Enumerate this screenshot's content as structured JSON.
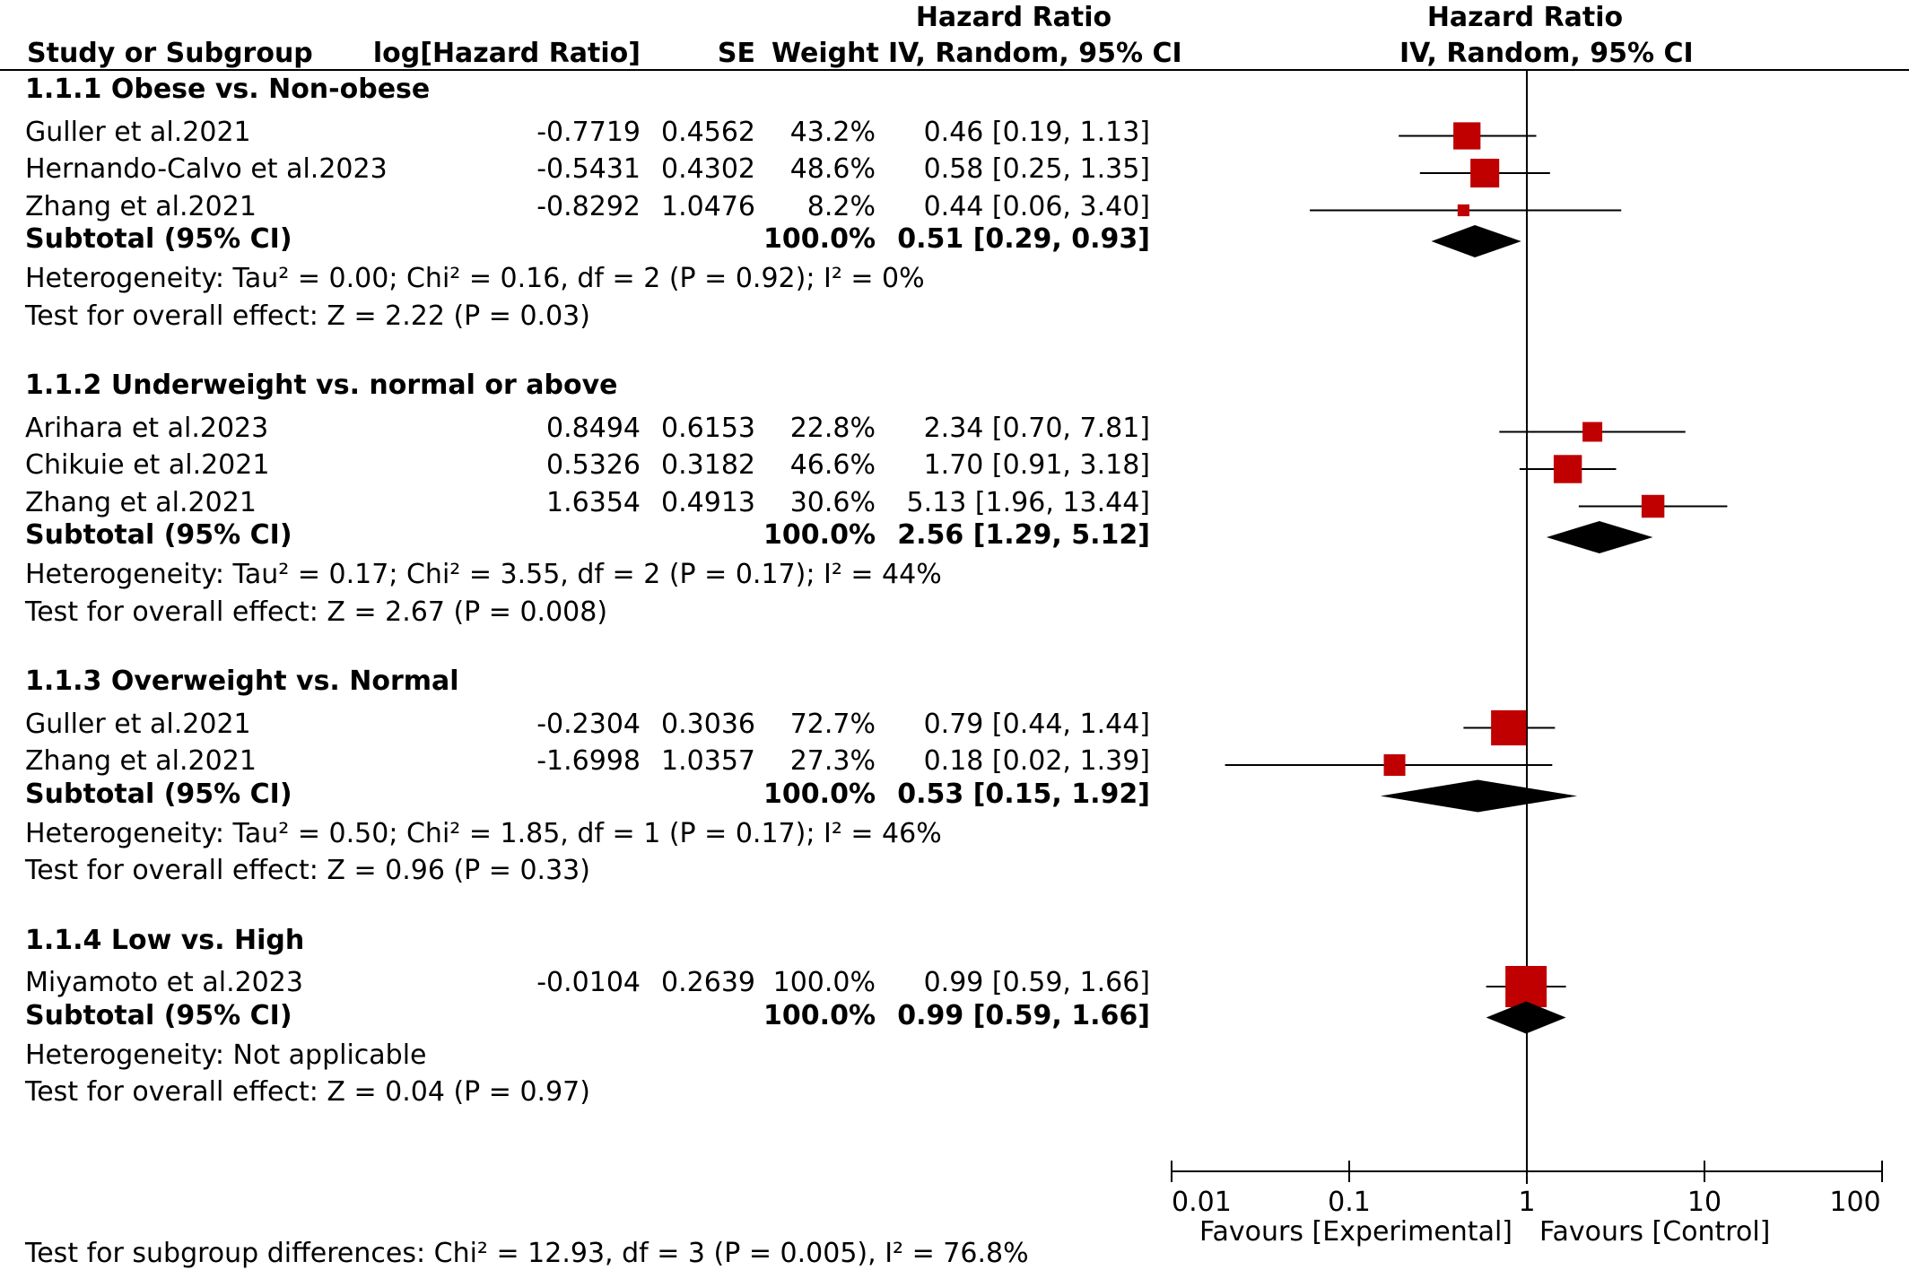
{
  "header": {
    "hr_top_left": "Hazard Ratio",
    "hr_top_right": "Hazard Ratio",
    "study_col": "Study or Subgroup",
    "loghr_col": "log[Hazard Ratio]",
    "se_col": "SE",
    "weight_col": "Weight",
    "ci_col_left": "IV, Random, 95% CI",
    "ci_col_right": "IV, Random, 95% CI"
  },
  "chart_data": {
    "type": "forest",
    "x_scale": "log",
    "xlim": [
      0.01,
      100
    ],
    "x_ticks": [
      "0.01",
      "0.1",
      "1",
      "10",
      "100"
    ],
    "favours_left": "Favours [Experimental]",
    "favours_right": "Favours [Control]",
    "null_line": 1,
    "groups": [
      {
        "title": "1.1.1 Obese vs. Non-obese",
        "studies": [
          {
            "name": "Guller et al.2021",
            "loghr": "-0.7719",
            "se": "0.4562",
            "weight": "43.2%",
            "ci_text": "0.46 [0.19, 1.13]",
            "hr": 0.46,
            "lo": 0.19,
            "hi": 1.13,
            "w": 43.2
          },
          {
            "name": "Hernando-Calvo et al.2023",
            "loghr": "-0.5431",
            "se": "0.4302",
            "weight": "48.6%",
            "ci_text": "0.58 [0.25, 1.35]",
            "hr": 0.58,
            "lo": 0.25,
            "hi": 1.35,
            "w": 48.6
          },
          {
            "name": "Zhang et al.2021",
            "loghr": "-0.8292",
            "se": "1.0476",
            "weight": "8.2%",
            "ci_text": "0.44 [0.06, 3.40]",
            "hr": 0.44,
            "lo": 0.06,
            "hi": 3.4,
            "w": 8.2
          }
        ],
        "subtotal": {
          "label": "Subtotal (95% CI)",
          "weight": "100.0%",
          "ci_text": "0.51 [0.29, 0.93]",
          "hr": 0.51,
          "lo": 0.29,
          "hi": 0.93
        },
        "heterogeneity": "Heterogeneity: Tau² = 0.00; Chi² = 0.16, df = 2 (P = 0.92); I² = 0%",
        "overall": "Test for overall effect: Z = 2.22 (P = 0.03)"
      },
      {
        "title": "1.1.2 Underweight vs. normal or above",
        "studies": [
          {
            "name": "Arihara et al.2023",
            "loghr": "0.8494",
            "se": "0.6153",
            "weight": "22.8%",
            "ci_text": "2.34 [0.70, 7.81]",
            "hr": 2.34,
            "lo": 0.7,
            "hi": 7.81,
            "w": 22.8
          },
          {
            "name": "Chikuie et al.2021",
            "loghr": "0.5326",
            "se": "0.3182",
            "weight": "46.6%",
            "ci_text": "1.70 [0.91, 3.18]",
            "hr": 1.7,
            "lo": 0.91,
            "hi": 3.18,
            "w": 46.6
          },
          {
            "name": "Zhang et al.2021",
            "loghr": "1.6354",
            "se": "0.4913",
            "weight": "30.6%",
            "ci_text": "5.13 [1.96, 13.44]",
            "hr": 5.13,
            "lo": 1.96,
            "hi": 13.44,
            "w": 30.6
          }
        ],
        "subtotal": {
          "label": "Subtotal (95% CI)",
          "weight": "100.0%",
          "ci_text": "2.56 [1.29, 5.12]",
          "hr": 2.56,
          "lo": 1.29,
          "hi": 5.12
        },
        "heterogeneity": "Heterogeneity: Tau² = 0.17; Chi² = 3.55, df = 2 (P = 0.17); I² = 44%",
        "overall": "Test for overall effect: Z = 2.67 (P = 0.008)"
      },
      {
        "title": "1.1.3 Overweight vs. Normal",
        "studies": [
          {
            "name": "Guller et al.2021",
            "loghr": "-0.2304",
            "se": "0.3036",
            "weight": "72.7%",
            "ci_text": "0.79 [0.44, 1.44]",
            "hr": 0.79,
            "lo": 0.44,
            "hi": 1.44,
            "w": 72.7
          },
          {
            "name": "Zhang et al.2021",
            "loghr": "-1.6998",
            "se": "1.0357",
            "weight": "27.3%",
            "ci_text": "0.18 [0.02, 1.39]",
            "hr": 0.18,
            "lo": 0.02,
            "hi": 1.39,
            "w": 27.3
          }
        ],
        "subtotal": {
          "label": "Subtotal (95% CI)",
          "weight": "100.0%",
          "ci_text": "0.53 [0.15, 1.92]",
          "hr": 0.53,
          "lo": 0.15,
          "hi": 1.92
        },
        "heterogeneity": "Heterogeneity: Tau² = 0.50; Chi² = 1.85, df = 1 (P = 0.17); I² = 46%",
        "overall": "Test for overall effect: Z = 0.96 (P = 0.33)"
      },
      {
        "title": "1.1.4 Low vs. High",
        "studies": [
          {
            "name": "Miyamoto et al.2023",
            "loghr": "-0.0104",
            "se": "0.2639",
            "weight": "100.0%",
            "ci_text": "0.99 [0.59, 1.66]",
            "hr": 0.99,
            "lo": 0.59,
            "hi": 1.66,
            "w": 100.0
          }
        ],
        "subtotal": {
          "label": "Subtotal (95% CI)",
          "weight": "100.0%",
          "ci_text": "0.99 [0.59, 1.66]",
          "hr": 0.99,
          "lo": 0.59,
          "hi": 1.66
        },
        "heterogeneity": "Heterogeneity: Not applicable",
        "overall": "Test for overall effect: Z = 0.04 (P = 0.97)"
      }
    ],
    "subgroup_test": "Test for subgroup differences: Chi² = 12.93, df = 3 (P = 0.005), I² = 76.8%"
  },
  "colors": {
    "marker": "#c00000",
    "diamond": "#000000",
    "line": "#000000"
  }
}
